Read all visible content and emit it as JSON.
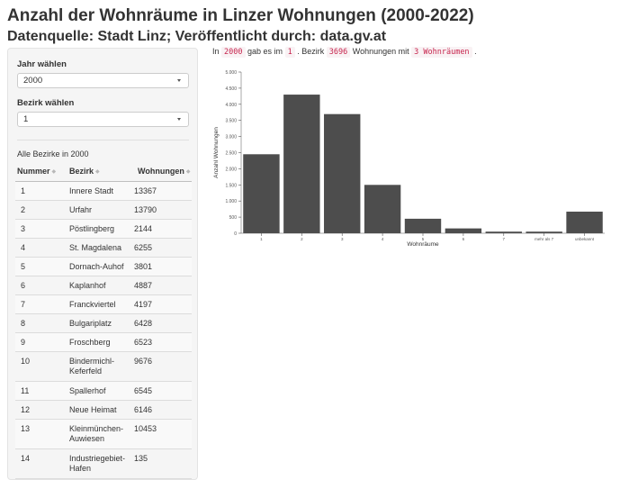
{
  "page": {
    "title": "Anzahl der Wohnräume in Linzer Wohnungen (2000-2022)",
    "subtitle": "Datenquelle: Stadt Linz; Veröffentlicht durch: data.gv.at"
  },
  "sidebar": {
    "year_label": "Jahr wählen",
    "year_value": "2000",
    "district_label": "Bezirk wählen",
    "district_value": "1",
    "table_caption": "Alle Bezirke in 2000",
    "columns": [
      "Nummer",
      "Bezirk",
      "Wohnungen"
    ],
    "rows": [
      [
        "1",
        "Innere Stadt",
        "13367"
      ],
      [
        "2",
        "Urfahr",
        "13790"
      ],
      [
        "3",
        "Pöstlingberg",
        "2144"
      ],
      [
        "4",
        "St. Magdalena",
        "6255"
      ],
      [
        "5",
        "Dornach-Auhof",
        "3801"
      ],
      [
        "6",
        "Kaplanhof",
        "4887"
      ],
      [
        "7",
        "Franckviertel",
        "4197"
      ],
      [
        "8",
        "Bulgariplatz",
        "6428"
      ],
      [
        "9",
        "Froschberg",
        "6523"
      ],
      [
        "10",
        "Bindermichl-Keferfeld",
        "9676"
      ],
      [
        "11",
        "Spallerhof",
        "6545"
      ],
      [
        "12",
        "Neue Heimat",
        "6146"
      ],
      [
        "13",
        "Kleinmünchen-Auwiesen",
        "10453"
      ],
      [
        "14",
        "Industriegebiet-Hafen",
        "135"
      ]
    ]
  },
  "sentence": {
    "part1": "In",
    "year": "2000",
    "part2": "gab es im",
    "district": "1",
    "part3": ". Bezirk",
    "count": "3696",
    "part4": "Wohnungen mit",
    "rooms": "3 Wohnräumen",
    "part5": "."
  },
  "chart_data": {
    "type": "bar",
    "categories": [
      "1",
      "2",
      "3",
      "4",
      "5",
      "6",
      "7",
      "mehr als 7",
      "unbekannt"
    ],
    "values": [
      2450,
      4300,
      3696,
      1500,
      450,
      150,
      50,
      50,
      670
    ],
    "xlabel": "Wohnräume",
    "ylabel": "Anzahl Wohnungen",
    "ylim": [
      0,
      5000
    ],
    "yticks": [
      0,
      500,
      1000,
      1500,
      2000,
      2500,
      3000,
      3500,
      4000,
      4500,
      5000
    ],
    "ytick_labels": [
      "0",
      "500",
      "1.000",
      "1.500",
      "2.000",
      "2.500",
      "3.000",
      "3.500",
      "4.000",
      "4.500",
      "5.000"
    ],
    "bar_color": "#4d4d4d",
    "grid": false
  }
}
